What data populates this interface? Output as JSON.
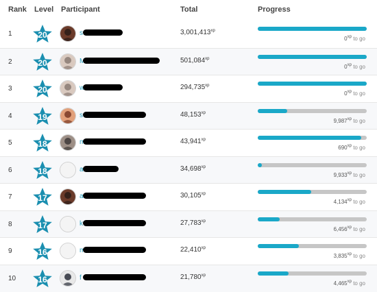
{
  "header": {
    "rank": "Rank",
    "level": "Level",
    "participant": "Participant",
    "total": "Total",
    "progress": "Progress"
  },
  "xp_unit": "xp",
  "to_go_label": "to go",
  "colors": {
    "star": "#1b8fb0",
    "bar_fill": "#1aa8c8",
    "bar_track": "#c6c6c6",
    "name_link": "#2a9fbe"
  },
  "rows": [
    {
      "rank": "1",
      "level": "20",
      "name_visible": "s",
      "total": "3,001,413",
      "to_go": "0",
      "progress": 1.0,
      "avatar": "photo-dark"
    },
    {
      "rank": "2",
      "level": "20",
      "name_visible": "M",
      "total": "501,084",
      "to_go": "0",
      "progress": 1.0,
      "avatar": "photo-light"
    },
    {
      "rank": "3",
      "level": "20",
      "name_visible": "w",
      "total": "294,735",
      "to_go": "0",
      "progress": 1.0,
      "avatar": "photo-light"
    },
    {
      "rank": "4",
      "level": "19",
      "name_visible": "s",
      "total": "48,153",
      "to_go": "9,987",
      "progress": 0.27,
      "avatar": "photo-warm"
    },
    {
      "rank": "5",
      "level": "18",
      "name_visible": "m",
      "total": "43,941",
      "to_go": "690",
      "progress": 0.95,
      "avatar": "photo-mixed"
    },
    {
      "rank": "6",
      "level": "18",
      "name_visible": "a",
      "total": "34,698",
      "to_go": "9,933",
      "progress": 0.04,
      "avatar": "default"
    },
    {
      "rank": "7",
      "level": "17",
      "name_visible": "a",
      "total": "30,105",
      "to_go": "4,134",
      "progress": 0.49,
      "avatar": "photo-dark"
    },
    {
      "rank": "8",
      "level": "17",
      "name_visible": "k",
      "total": "27,783",
      "to_go": "6,456",
      "progress": 0.2,
      "avatar": "default"
    },
    {
      "rank": "9",
      "level": "16",
      "name_visible": "m",
      "total": "22,410",
      "to_go": "3,835",
      "progress": 0.38,
      "avatar": "default"
    },
    {
      "rank": "10",
      "level": "16",
      "name_visible": "f",
      "total": "21,780",
      "to_go": "4,465",
      "progress": 0.28,
      "avatar": "photo-person"
    }
  ]
}
